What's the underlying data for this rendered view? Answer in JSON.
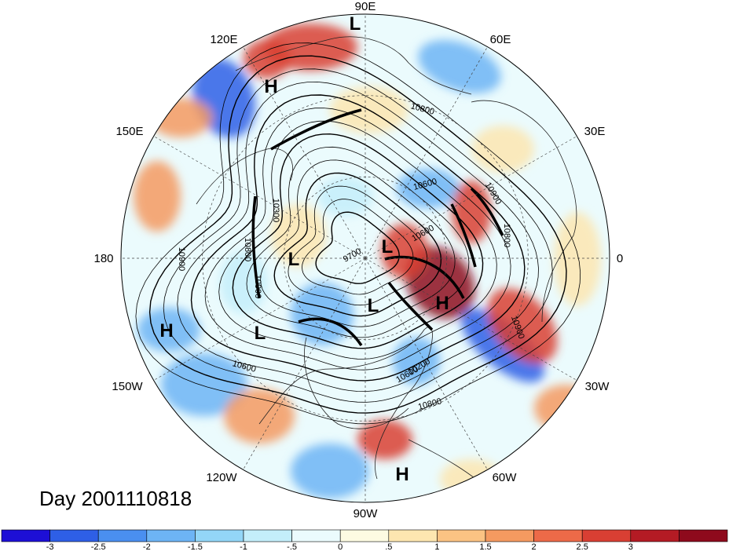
{
  "title": "Day 2001110818",
  "longitude_labels": [
    {
      "text": "90E",
      "pos": "top"
    },
    {
      "text": "60E",
      "pos": "upper-right"
    },
    {
      "text": "30E",
      "pos": "right-upper"
    },
    {
      "text": "0",
      "pos": "right"
    },
    {
      "text": "30W",
      "pos": "right-lower"
    },
    {
      "text": "60W",
      "pos": "lower-right"
    },
    {
      "text": "90W",
      "pos": "bottom"
    },
    {
      "text": "120W",
      "pos": "lower-left"
    },
    {
      "text": "150W",
      "pos": "left-lower"
    },
    {
      "text": "180",
      "pos": "left"
    },
    {
      "text": "150E",
      "pos": "left-upper"
    },
    {
      "text": "120E",
      "pos": "upper-left"
    }
  ],
  "pressure_centers": [
    {
      "type": "L",
      "region": "north-pole top"
    },
    {
      "type": "H",
      "region": "east asia"
    },
    {
      "type": "L",
      "region": "arctic center-left"
    },
    {
      "type": "L",
      "region": "arctic center"
    },
    {
      "type": "L",
      "region": "hudson bay"
    },
    {
      "type": "H",
      "region": "north atlantic"
    },
    {
      "type": "L",
      "region": "gulf of alaska"
    },
    {
      "type": "H",
      "region": "north pacific"
    },
    {
      "type": "H",
      "region": "caribbean"
    }
  ],
  "contour_labels": [
    "10900",
    "10800",
    "10300",
    "10600",
    "9700",
    "10600",
    "10900",
    "10800",
    "10900",
    "10600",
    "10200",
    "10800",
    "10800",
    "10900",
    "10600"
  ],
  "colorbar": {
    "colors": [
      "#1d0fd6",
      "#2e5fe6",
      "#4a8ff0",
      "#6db4f5",
      "#93d6f7",
      "#c4eefa",
      "#ebfbfd",
      "#fdfbe2",
      "#fde6b0",
      "#fbc383",
      "#f59a60",
      "#ed6a48",
      "#d93f33",
      "#b41b24",
      "#8e0a1c"
    ],
    "ticks": [
      "-3",
      "-2.5",
      "-2",
      "-1.5",
      "-1",
      "-.5",
      "0",
      ".5",
      "1",
      "1.5",
      "2",
      "2.5",
      "3"
    ]
  },
  "palette": {
    "strong_blue": "#2e5fe6",
    "mid_blue": "#6db4f5",
    "light_blue": "#c4eefa",
    "light_yellow": "#fde6b0",
    "orange": "#f59a60",
    "red": "#d93f33",
    "dark_red": "#8e0a1c"
  }
}
